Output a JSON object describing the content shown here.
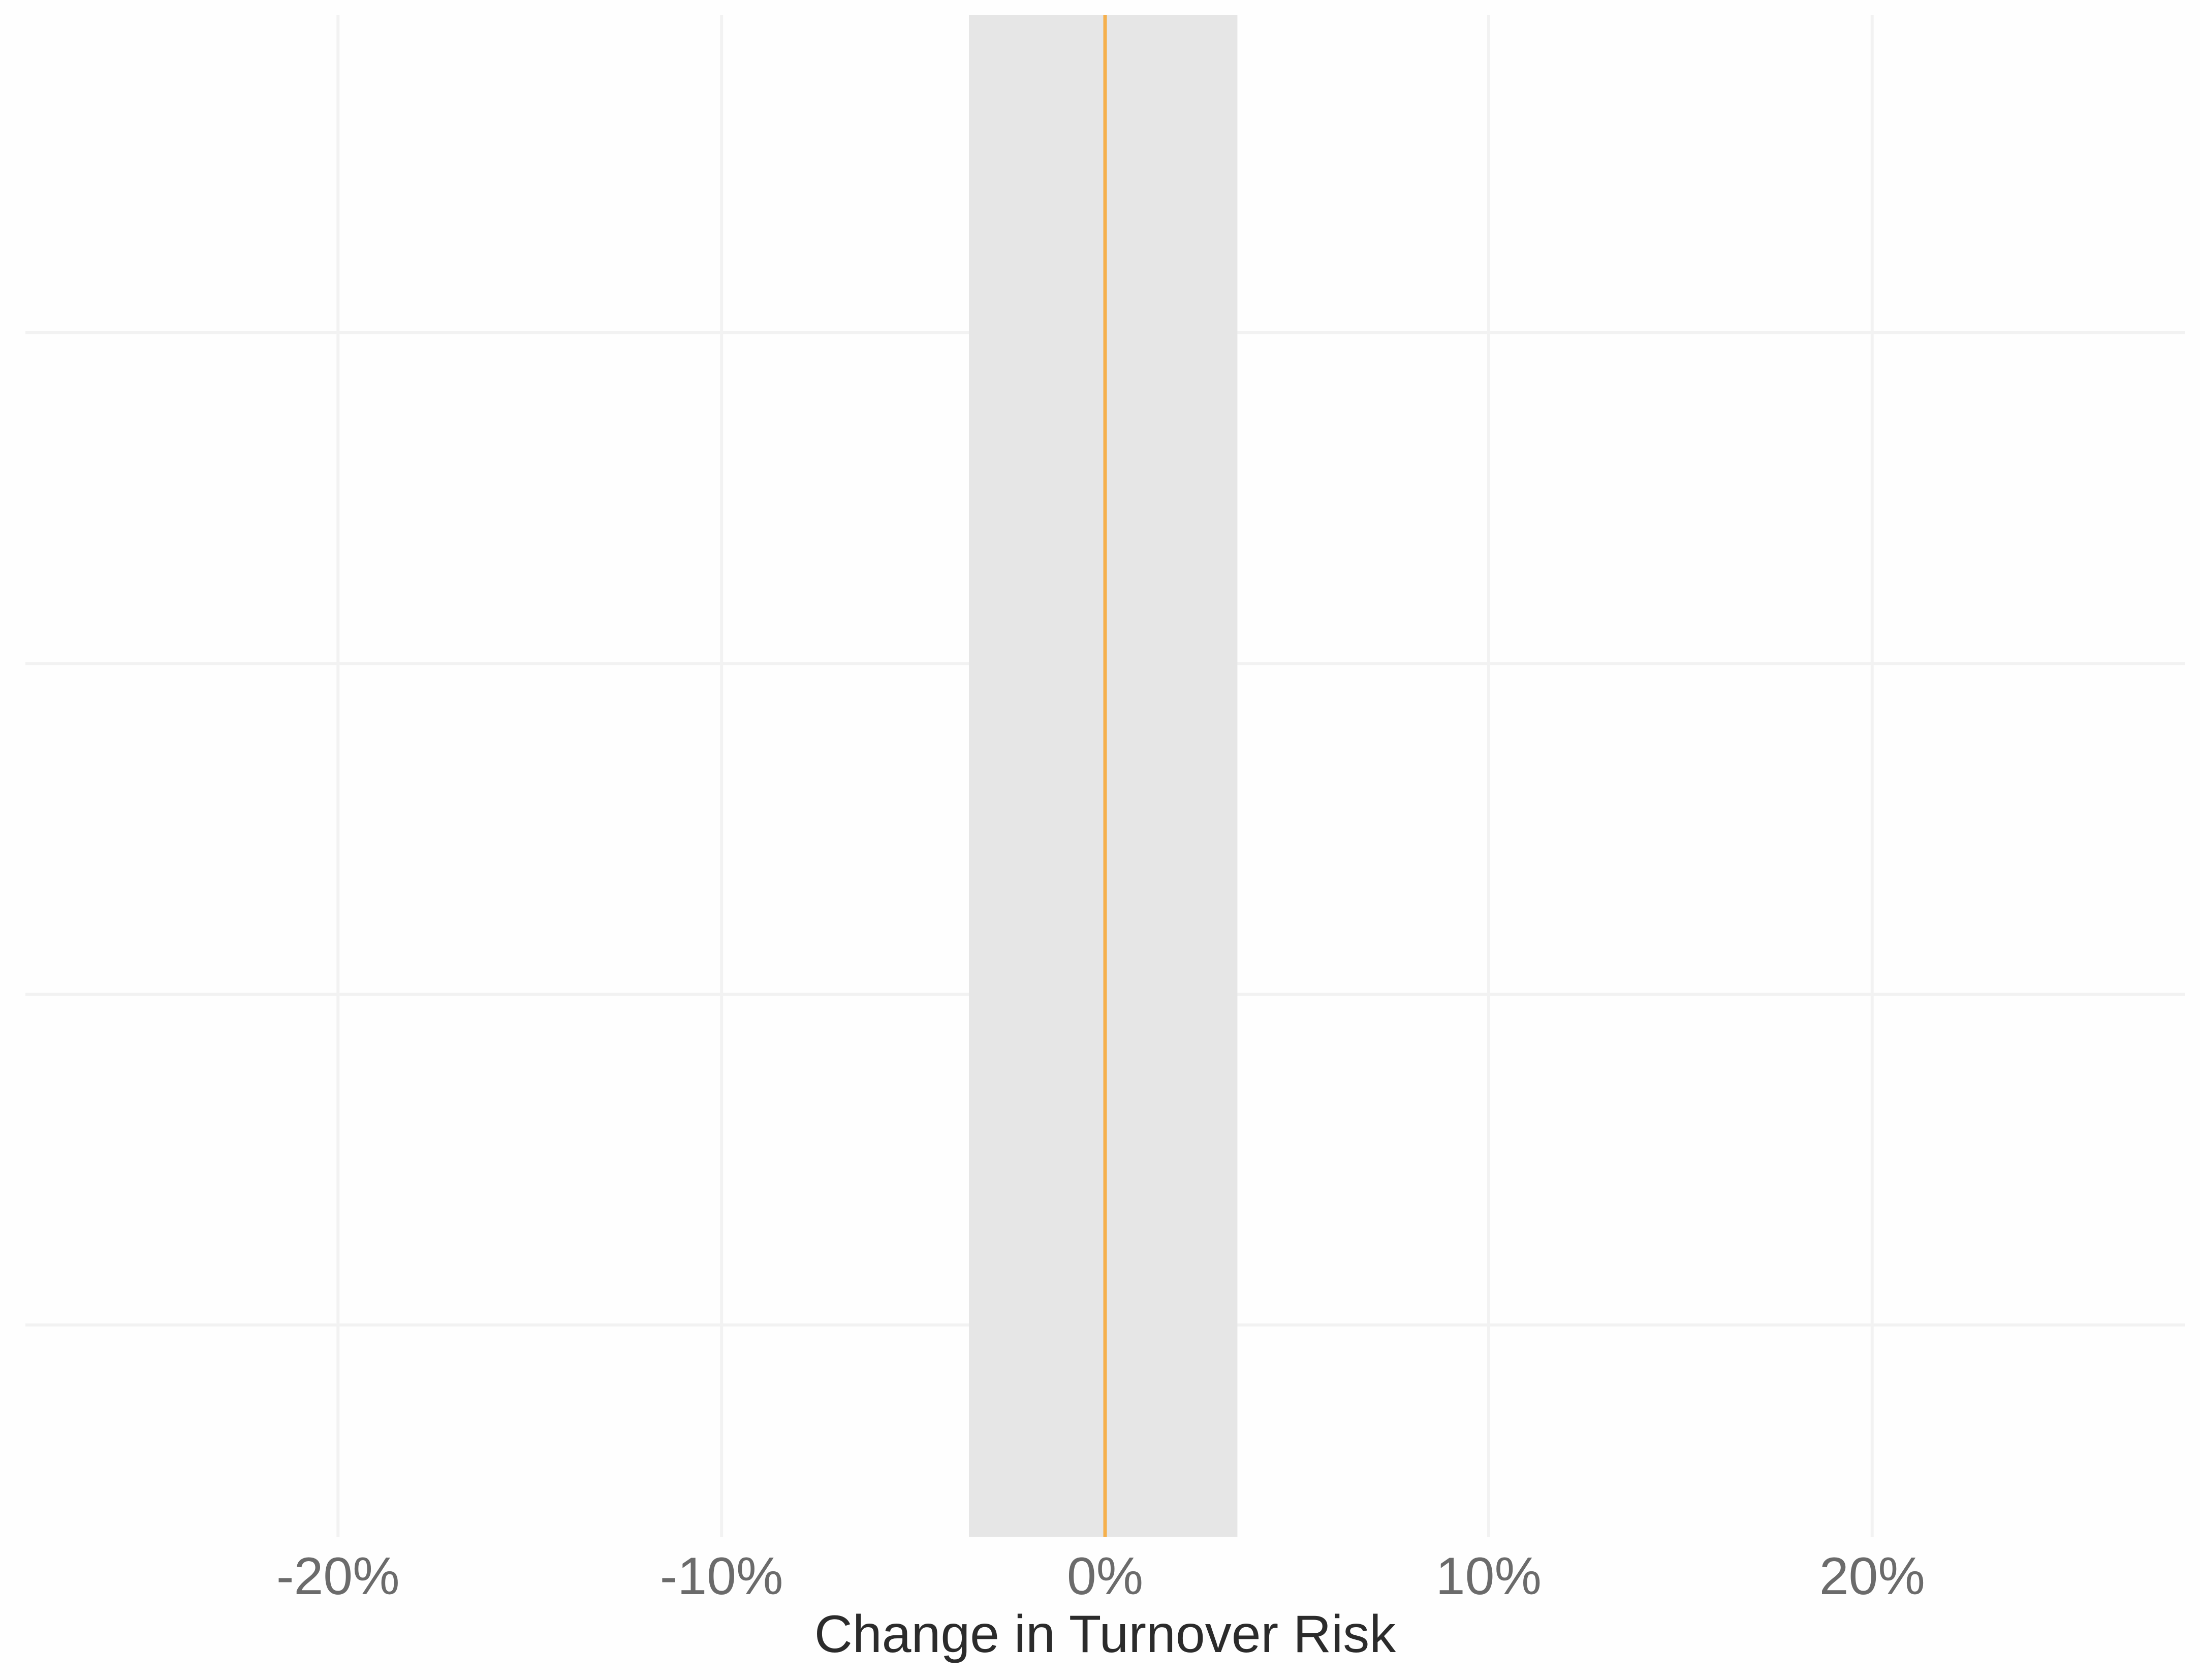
{
  "chart_data": {
    "type": "interval",
    "title": "",
    "xlabel": "Change in Turnover Risk",
    "ylabel": "",
    "x_ticks": [
      -0.2,
      -0.1,
      0,
      0.1,
      0.2
    ],
    "x_tick_labels": [
      "-20%",
      "-10%",
      "0%",
      "10%",
      "20%"
    ],
    "xlim": [
      -0.2815,
      0.2815
    ],
    "y_gridline_count": 4,
    "grid": true,
    "legend": "none",
    "band": {
      "lower": -0.0355,
      "upper": 0.0345,
      "color": "#e6e6e6"
    },
    "reference_line": {
      "value": 0,
      "color": "#f5b04d"
    }
  }
}
